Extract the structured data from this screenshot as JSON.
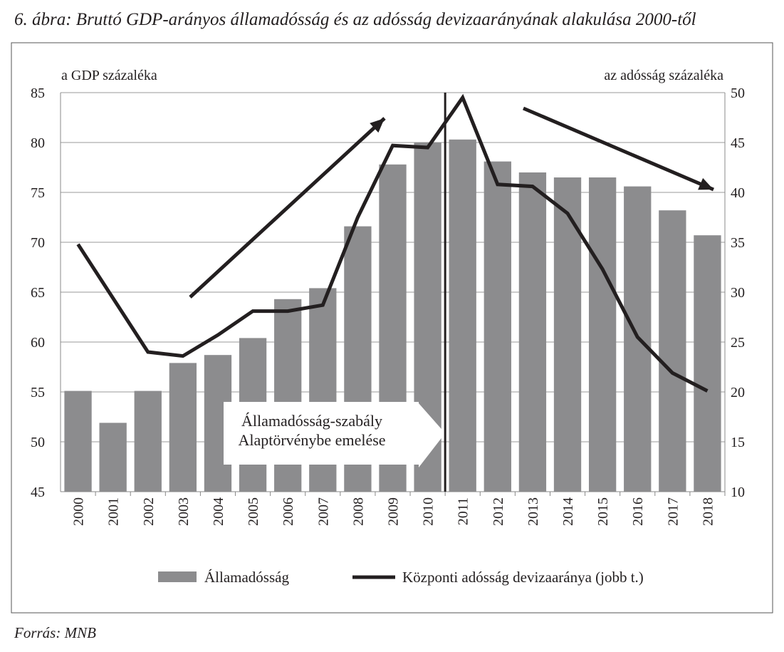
{
  "title": "6. ábra: Bruttó GDP-arányos államadósság és az adósság devizaarányának alakulása 2000-től",
  "source": "Forrás: MNB",
  "chart_data": {
    "type": "bar",
    "title": "",
    "categories": [
      "2000",
      "2001",
      "2002",
      "2003",
      "2004",
      "2005",
      "2006",
      "2007",
      "2008",
      "2009",
      "2010",
      "2011",
      "2012",
      "2013",
      "2014",
      "2015",
      "2016",
      "2017",
      "2018"
    ],
    "ylabel_left": "a GDP százaléka",
    "ylabel_right": "az adósság százaléka",
    "ylim_left": [
      45,
      85
    ],
    "ylim_right": [
      10,
      50
    ],
    "yticks_left": [
      45,
      50,
      55,
      60,
      65,
      70,
      75,
      80,
      85
    ],
    "yticks_right": [
      10,
      15,
      20,
      25,
      30,
      35,
      40,
      45,
      50
    ],
    "grid": true,
    "legend_position": "bottom",
    "series": [
      {
        "name": "Államadósság",
        "type": "bar",
        "axis": "left",
        "color": "#8c8c8e",
        "values": [
          55.1,
          51.9,
          55.1,
          57.9,
          58.7,
          60.4,
          64.3,
          65.4,
          71.6,
          77.8,
          80.0,
          80.3,
          78.1,
          77.0,
          76.5,
          76.5,
          75.6,
          73.2,
          70.7
        ]
      },
      {
        "name": "Központi adósság devizaaránya (jobb t.)",
        "type": "line",
        "axis": "right",
        "color": "#231f20",
        "values": [
          34.8,
          29.4,
          24.0,
          23.6,
          25.7,
          28.1,
          28.1,
          28.7,
          37.5,
          44.7,
          44.5,
          49.5,
          40.8,
          40.6,
          37.9,
          32.3,
          25.5,
          21.9,
          20.1
        ]
      }
    ],
    "annotations": {
      "event_label_lines": [
        "Államadósság-szabály",
        "Alaptörvénybe emelése"
      ],
      "event_between": [
        "2010",
        "2011"
      ]
    }
  }
}
